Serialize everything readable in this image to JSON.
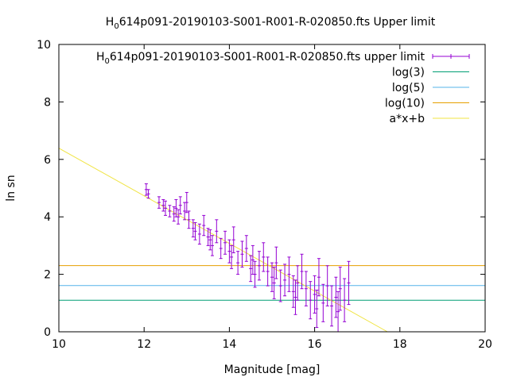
{
  "chart_data": {
    "type": "scatter",
    "title_prefix": "H",
    "title_sub": "0",
    "title_rest": "614p091-20190103-S001-R001-R-020850.fts Upper limit",
    "xlabel": "Magnitude [mag]",
    "ylabel": "ln sn",
    "xlim": [
      10,
      20
    ],
    "ylim": [
      0,
      10
    ],
    "xticks": [
      10,
      12,
      14,
      16,
      18,
      20
    ],
    "yticks": [
      0,
      2,
      4,
      6,
      8,
      10
    ],
    "grid": false,
    "legend_position": "top-right",
    "colors": {
      "points": "#9400d3",
      "log3": "#009e73",
      "log5": "#56b4e9",
      "log10": "#e69f00",
      "fit": "#f0e442"
    },
    "legend": [
      {
        "key": "points",
        "prefix": "H",
        "sub": "0",
        "rest": "614p091-20190103-S001-R001-R-020850.fts upper limit"
      },
      {
        "key": "log3",
        "label": "log(3)"
      },
      {
        "key": "log5",
        "label": "log(5)"
      },
      {
        "key": "log10",
        "label": "log(10)"
      },
      {
        "key": "fit",
        "label": "a*x+b"
      }
    ],
    "hlines": [
      {
        "key": "log3",
        "y": 1.0986
      },
      {
        "key": "log5",
        "y": 1.6094
      },
      {
        "key": "log10",
        "y": 2.3026
      }
    ],
    "fit": {
      "a": -0.829,
      "b": 14.68
    },
    "series": [
      {
        "key": "points",
        "x": [
          12.05,
          12.1,
          12.35,
          12.45,
          12.5,
          12.6,
          12.7,
          12.75,
          12.8,
          12.85,
          12.95,
          13.0,
          13.05,
          13.15,
          13.2,
          13.3,
          13.4,
          13.5,
          13.55,
          13.6,
          13.7,
          13.8,
          13.9,
          14.0,
          14.05,
          14.1,
          14.2,
          14.3,
          14.4,
          14.5,
          14.55,
          14.6,
          14.7,
          14.8,
          14.9,
          15.0,
          15.05,
          15.1,
          15.2,
          15.3,
          15.4,
          15.5,
          15.55,
          15.6,
          15.7,
          15.8,
          15.9,
          16.0,
          16.05,
          16.1,
          16.2,
          16.3,
          16.4,
          16.5,
          16.55,
          16.6,
          16.7,
          16.8
        ],
        "y": [
          4.95,
          4.8,
          4.5,
          4.4,
          4.3,
          4.2,
          4.1,
          4.3,
          4.0,
          4.4,
          4.2,
          4.5,
          3.9,
          3.6,
          3.5,
          3.4,
          3.7,
          3.3,
          3.2,
          3.0,
          3.5,
          2.9,
          3.1,
          2.8,
          2.6,
          3.2,
          2.4,
          2.7,
          2.9,
          2.2,
          2.5,
          2.0,
          2.3,
          2.6,
          2.1,
          1.9,
          1.7,
          2.4,
          1.6,
          1.8,
          2.0,
          1.4,
          1.2,
          1.7,
          2.1,
          1.5,
          1.1,
          1.3,
          0.8,
          1.9,
          1.0,
          1.6,
          0.9,
          1.2,
          0.7,
          1.5,
          1.1,
          1.7
        ],
        "err": [
          0.2,
          0.15,
          0.2,
          0.2,
          0.25,
          0.2,
          0.25,
          0.3,
          0.25,
          0.3,
          0.3,
          0.35,
          0.3,
          0.3,
          0.3,
          0.35,
          0.35,
          0.3,
          0.35,
          0.35,
          0.4,
          0.35,
          0.4,
          0.4,
          0.4,
          0.45,
          0.4,
          0.45,
          0.45,
          0.45,
          0.5,
          0.45,
          0.5,
          0.5,
          0.5,
          0.5,
          0.55,
          0.55,
          0.55,
          0.55,
          0.6,
          0.55,
          0.6,
          0.6,
          0.6,
          0.6,
          0.65,
          0.65,
          0.65,
          0.65,
          0.65,
          0.7,
          0.7,
          0.7,
          0.7,
          0.75,
          0.75,
          0.75
        ]
      }
    ]
  }
}
